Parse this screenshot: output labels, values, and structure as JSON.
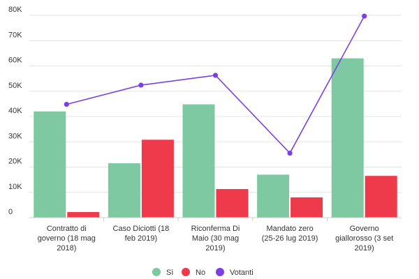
{
  "chart_data": {
    "type": "bar",
    "title": "",
    "xlabel": "",
    "ylabel": "",
    "ylim": [
      0,
      80000
    ],
    "yticks": [
      0,
      10000,
      20000,
      30000,
      40000,
      50000,
      60000,
      70000,
      80000
    ],
    "ytick_labels": [
      "0",
      "10K",
      "20K",
      "30K",
      "40K",
      "50K",
      "60K",
      "70K",
      "80K"
    ],
    "categories": [
      [
        "Contratto di",
        "governo (18 mag",
        "2018)"
      ],
      [
        "Caso Diciotti (18",
        "feb 2019)"
      ],
      [
        "Riconferma Di",
        "Maio (30 mag",
        "2019)"
      ],
      [
        "Mandato zero",
        "(25-26 lug 2019)"
      ],
      [
        "Governo",
        "giallorosso (3 set",
        "2019)"
      ]
    ],
    "series": [
      {
        "name": "Sì",
        "kind": "bar",
        "color": "#7ec9a2",
        "values": [
          42000,
          21500,
          44800,
          17000,
          63000
        ]
      },
      {
        "name": "No",
        "kind": "bar",
        "color": "#ef3a4b",
        "values": [
          2200,
          30800,
          11300,
          8000,
          16500
        ]
      },
      {
        "name": "Votanti",
        "kind": "line",
        "color": "#7b3fe4",
        "values": [
          44800,
          52400,
          56300,
          25500,
          79700
        ]
      }
    ],
    "grid": true,
    "legend_position": "bottom"
  }
}
